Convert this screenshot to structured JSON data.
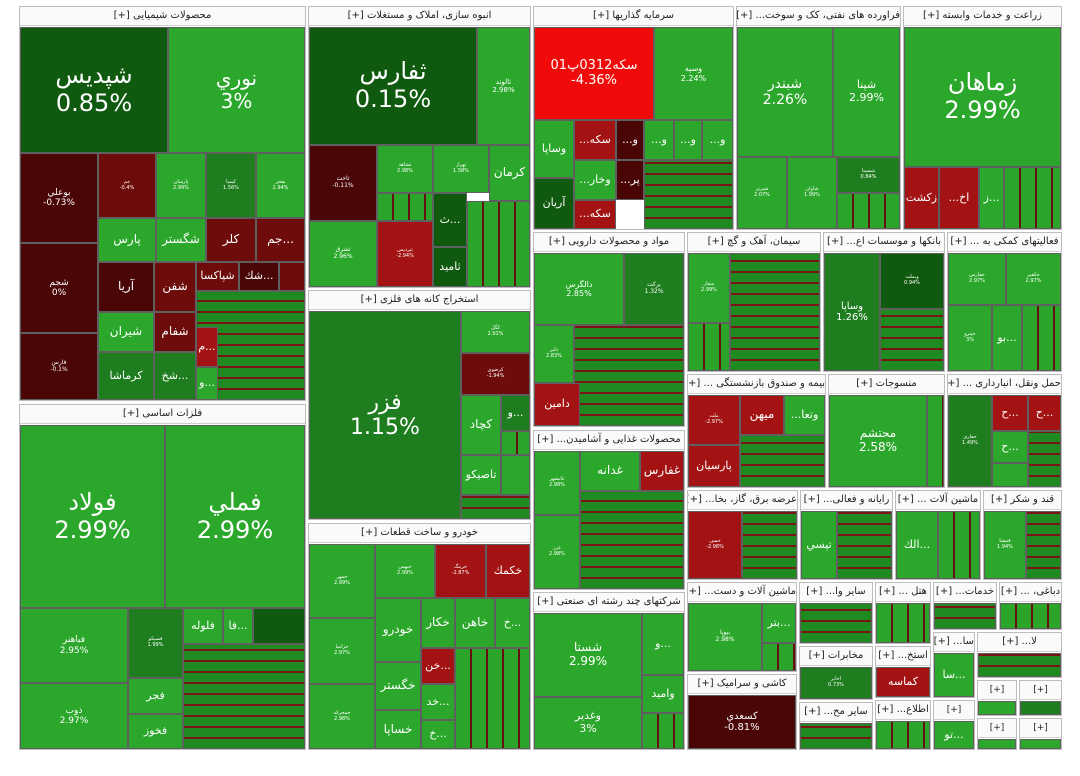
{
  "palette": {
    "strong_green": "#0f5a0f",
    "mid_green": "#1e7d1e",
    "green": "#2ba82b",
    "bright_green": "#33b633",
    "red": "#a31313",
    "dark_red": "#6e0b0b",
    "bright_red": "#f00a0a"
  },
  "sectors": {
    "chem": "محصولات شیمیایی [+]",
    "build": "انبوه سازی، املاک و مستغلات [+]",
    "invest": "سرمایه گذاریها [+]",
    "oil": "فراورده های نفتی، کک و سوخت... [+]",
    "agri": "زراعت و خدمات وابسته [+]",
    "mining": "استخراج کانه های فلزی [+]",
    "pharma": "مواد و محصولات دارویی [+]",
    "cement": "سیمان، آهک و گچ [+]",
    "banks": "بانکها و موسسات اع... [+]",
    "support": "فعالیتهای کمکی به ... [+]",
    "metals": "فلزات اساسی [+]",
    "insurance": "بیمه و صندوق بازنشستگی ... [+]",
    "textile": "منسوجات [+]",
    "transport": "حمل ونقل، انبارداری ... [+]",
    "food": "محصولات غذایی و آشامیدن... [+]",
    "power": "عرضه برق، گاز، بخا... [+]",
    "computer": "رایانه و فعالی... [+]",
    "machine2": "ماشین آلات ... [+]",
    "sugar": "قند و شکر [+]",
    "auto": "خودرو و ساخت قطعات [+]",
    "multi": "شرکتهای چند رشته ای صنعتی [+]",
    "machine": "ماشین آلات و دست... [+]",
    "other": "سایر وا... [+]",
    "hotel": "هتل ... [+]",
    "services": "خدمات... [+]",
    "leather": "دباغی، ... [+]",
    "tile": "کاشی و سرامیک [+]",
    "misc1": "اطلاع... [+]",
    "misc2": "سایر مح... [+]",
    "misc3": "استخ... [+]",
    "mining2": "سا... [+]",
    "la": "لا... [+]",
    "contract": "مخابرات [+]"
  },
  "tiles": {
    "shapdis": {
      "sym": "شپدیس",
      "pct": "0.85%"
    },
    "nouri": {
      "sym": "نوري",
      "pct": "3%"
    },
    "boali": {
      "sym": "بوعلي",
      "pct": "-0.73%"
    },
    "jam_small": {
      "sym": "جم",
      "pct": "-0.4%"
    },
    "parsan": {
      "sym": "پارسان",
      "pct": "2.99%"
    },
    "kimia": {
      "sym": "کیمیا",
      "pct": "1.56%"
    },
    "bafal": {
      "sym": "بفجر",
      "pct": "2.94%"
    },
    "pars": {
      "sym": "پارس",
      "pct": ""
    },
    "shegostar": {
      "sym": "شگستر",
      "pct": ""
    },
    "kalar": {
      "sym": "کلر",
      "pct": ""
    },
    "jam": {
      "sym": "...جم",
      "pct": ""
    },
    "shajam": {
      "sym": "شجم",
      "pct": "0%"
    },
    "aria": {
      "sym": "آريا",
      "pct": ""
    },
    "shafan": {
      "sym": "شفن",
      "pct": ""
    },
    "shepaksa": {
      "sym": "شپاکسا",
      "pct": ""
    },
    "shak": {
      "sym": "...شك",
      "pct": ""
    },
    "shiran": {
      "sym": "شيران",
      "pct": ""
    },
    "shafam": {
      "sym": "شفام",
      "pct": ""
    },
    "faras": {
      "sym": "فارس",
      "pct": "-0.1%"
    },
    "kermasha": {
      "sym": "کرماشا",
      "pct": ""
    },
    "shakh": {
      "sym": "...شخ",
      "pct": ""
    },
    "m": {
      "sym": "...م",
      "pct": ""
    },
    "o1": {
      "sym": "...و",
      "pct": ""
    },
    "thafars": {
      "sym": "ثفارس",
      "pct": "0.15%"
    },
    "thalvand": {
      "sym": "ثالوند",
      "pct": "2.98%"
    },
    "thakhat": {
      "sym": "ثاخت",
      "pct": "-0.11%"
    },
    "thashahd": {
      "sym": "ثشاهد",
      "pct": "2.98%"
    },
    "thahaz": {
      "sym": "ثهراز",
      "pct": "1.58%"
    },
    "kerman": {
      "sym": "کرمان",
      "pct": ""
    },
    "th": {
      "sym": "...ث",
      "pct": ""
    },
    "thamid": {
      "sym": "ثامید",
      "pct": ""
    },
    "thashrq": {
      "sym": "ثشرق",
      "pct": "2.96%"
    },
    "thapardis": {
      "sym": "ثپردیس",
      "pct": "-2.94%"
    },
    "seke": {
      "sym": "سکه0312پ01",
      "pct": "-4.36%"
    },
    "vasepe": {
      "sym": "وسپه",
      "pct": "2.24%"
    },
    "vasapa": {
      "sym": "وساپا",
      "pct": ""
    },
    "seke2": {
      "sym": "سکه...",
      "pct": ""
    },
    "vakhar": {
      "sym": "وخار...",
      "pct": ""
    },
    "par": {
      "sym": "پر...",
      "pct": ""
    },
    "arian": {
      "sym": "آريان",
      "pct": ""
    },
    "seke3": {
      "sym": "سکه...",
      "pct": ""
    },
    "shebandar": {
      "sym": "شبندر",
      "pct": "2.26%"
    },
    "shepena": {
      "sym": "شپنا",
      "pct": "2.99%"
    },
    "shebriz": {
      "sym": "شبریز",
      "pct": "2.07%"
    },
    "shavan": {
      "sym": "شاوان",
      "pct": "1.99%"
    },
    "sheshina": {
      "sym": "شسینا",
      "pct": "0.84%"
    },
    "zamahan": {
      "sym": "زماهان",
      "pct": "2.99%"
    },
    "zakesht": {
      "sym": "زکشت",
      "pct": ""
    },
    "akh": {
      "sym": "اخ...",
      "pct": ""
    },
    "z": {
      "sym": "...ز",
      "pct": ""
    },
    "fazar": {
      "sym": "فزر",
      "pct": "1.15%"
    },
    "kaghol": {
      "sym": "کگل",
      "pct": "2.91%"
    },
    "kerazavi": {
      "sym": "کرضوی",
      "pct": "-1.94%"
    },
    "kachad": {
      "sym": "کچاد",
      "pct": ""
    },
    "tasikou": {
      "sym": "تاصيكو",
      "pct": ""
    },
    "dalgars": {
      "sym": "دالگرس",
      "pct": "2.85%"
    },
    "barkat": {
      "sym": "برکت",
      "pct": "1.32%"
    },
    "dalber": {
      "sym": "دلبر",
      "pct": "2.83%"
    },
    "damin": {
      "sym": "دامین",
      "pct": ""
    },
    "sefars": {
      "sym": "سفار",
      "pct": "2.99%"
    },
    "vebmellat": {
      "sym": "وبملت",
      "pct": "0.94%"
    },
    "vebsadr": {
      "sym": "وساپا",
      "pct": "1.26%"
    },
    "vo": {
      "sym": "...بو",
      "pct": ""
    },
    "hafars": {
      "sym": "حفارس",
      "pct": "2.97%"
    },
    "hakfir": {
      "sym": "حکفیر",
      "pct": "2.97%"
    },
    "hapetro": {
      "sym": "حپترو",
      "pct": "3%"
    },
    "folad": {
      "sym": "فولاد",
      "pct": "2.99%"
    },
    "fameli": {
      "sym": "فملي",
      "pct": "2.99%"
    },
    "fabahonar": {
      "sym": "فباهنر",
      "pct": "2.95%"
    },
    "feseko": {
      "sym": "فسپکو",
      "pct": "1.99%"
    },
    "faloleh": {
      "sym": "فلوله",
      "pct": ""
    },
    "fa": {
      "sym": "...فا",
      "pct": ""
    },
    "fajr": {
      "sym": "فجر",
      "pct": ""
    },
    "zob": {
      "sym": "ذوب",
      "pct": "2.97%"
    },
    "fakhoz": {
      "sym": "فخوز",
      "pct": ""
    },
    "mehan": {
      "sym": "ميهن",
      "pct": ""
    },
    "vota": {
      "sym": "وتعا...",
      "pct": ""
    },
    "mellat": {
      "sym": "ملت",
      "pct": "-2.97%"
    },
    "parsian": {
      "sym": "پارسیان",
      "pct": ""
    },
    "mohtasham": {
      "sym": "محتشم",
      "pct": "2.58%"
    },
    "mahinar": {
      "sym": "حفاری",
      "pct": "1.49%"
    },
    "h1": {
      "sym": "...ح",
      "pct": ""
    },
    "h2": {
      "sym": "...ح",
      "pct": ""
    },
    "h3": {
      "sym": "...ح",
      "pct": ""
    },
    "ghadaneh": {
      "sym": "غدانه",
      "pct": ""
    },
    "ghafars": {
      "sym": "غفارس",
      "pct": ""
    },
    "ghabshahr": {
      "sym": "غابشهر",
      "pct": "2.98%"
    },
    "ghazar": {
      "sym": "غزر",
      "pct": "2.98%"
    },
    "hasin": {
      "sym": "حسن",
      "pct": "-2.98%"
    },
    "tapsi": {
      "sym": "تپسي",
      "pct": ""
    },
    "alk": {
      "sym": "...الك",
      "pct": ""
    },
    "gandar": {
      "sym": "قنیشا",
      "pct": "1.94%"
    },
    "khodro": {
      "sym": "خودرو",
      "pct": ""
    },
    "khakar": {
      "sym": "خکار",
      "pct": ""
    },
    "khahan": {
      "sym": "خاهن",
      "pct": ""
    },
    "kh": {
      "sym": "...خ",
      "pct": ""
    },
    "khegostar": {
      "sym": "خگستر",
      "pct": ""
    },
    "khan": {
      "sym": "...خن",
      "pct": ""
    },
    "khasapa": {
      "sym": "خساپا",
      "pct": ""
    },
    "khad": {
      "sym": "...خد",
      "pct": ""
    },
    "khmehan": {
      "sym": "خمهر",
      "pct": "2.99%"
    },
    "khzamia": {
      "sym": "خزامیا",
      "pct": "2.97%"
    },
    "khmohar": {
      "sym": "خمحرکه",
      "pct": "2.98%"
    },
    "khegaz": {
      "sym": "خبهمن",
      "pct": "2.99%"
    },
    "khringa": {
      "sym": "خرینگ",
      "pct": "-2.87%"
    },
    "khekomak": {
      "sym": "خكمك",
      "pct": ""
    },
    "shasta": {
      "sym": "شستا",
      "pct": "2.99%"
    },
    "vaghadir": {
      "sym": "وغدیر",
      "pct": "3%"
    },
    "vamid": {
      "sym": "وامید",
      "pct": ""
    },
    "vo2": {
      "sym": "...و",
      "pct": ""
    },
    "bayoya": {
      "sym": "بيوپا",
      "pct": "2.98%"
    },
    "betr": {
      "sym": "...بتر",
      "pct": ""
    },
    "kasaadi": {
      "sym": "کسعدي",
      "pct": "-0.81%"
    },
    "kamasa": {
      "sym": "کماسه",
      "pct": ""
    },
    "mokhaberat": {
      "sym": "مخابرات",
      "pct": ""
    },
    "akhabar": {
      "sym": "اخابر",
      "pct": "0.73%"
    },
    "sa": {
      "sym": "...سا",
      "pct": ""
    },
    "to": {
      "sym": "...تو",
      "pct": ""
    }
  }
}
